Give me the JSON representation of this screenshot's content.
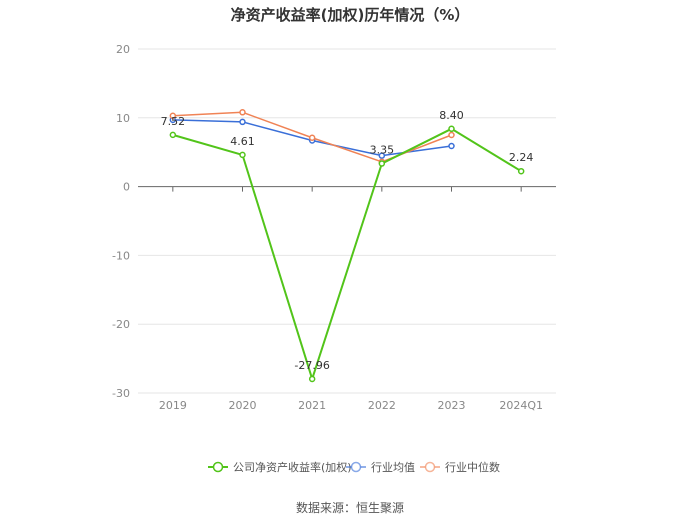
{
  "title": "净资产收益率(加权)历年情况（%）",
  "source": "数据来源：恒生聚源",
  "chart_data": {
    "type": "line",
    "title": "净资产收益率(加权)历年情况（%）",
    "categories": [
      "2019",
      "2020",
      "2021",
      "2022",
      "2023",
      "2024Q1"
    ],
    "ylim": [
      -30,
      20
    ],
    "yticks": [
      20,
      10,
      0,
      -10,
      -20,
      -30
    ],
    "grid": true,
    "legend_position": "bottom",
    "series": [
      {
        "name": "公司净资产收益率(加权)",
        "color": "#52c41a",
        "values": [
          7.52,
          4.61,
          -27.96,
          3.35,
          8.4,
          2.24
        ],
        "labels": [
          "7.52",
          "4.61",
          "-27.96",
          "3.35",
          "8.40",
          "2.24"
        ]
      },
      {
        "name": "行业均值",
        "color": "#3a6fd8",
        "values": [
          9.7,
          9.4,
          6.7,
          4.5,
          5.9,
          null
        ]
      },
      {
        "name": "行业中位数",
        "color": "#f08355",
        "values": [
          10.3,
          10.8,
          7.1,
          3.6,
          7.5,
          null
        ]
      }
    ]
  }
}
